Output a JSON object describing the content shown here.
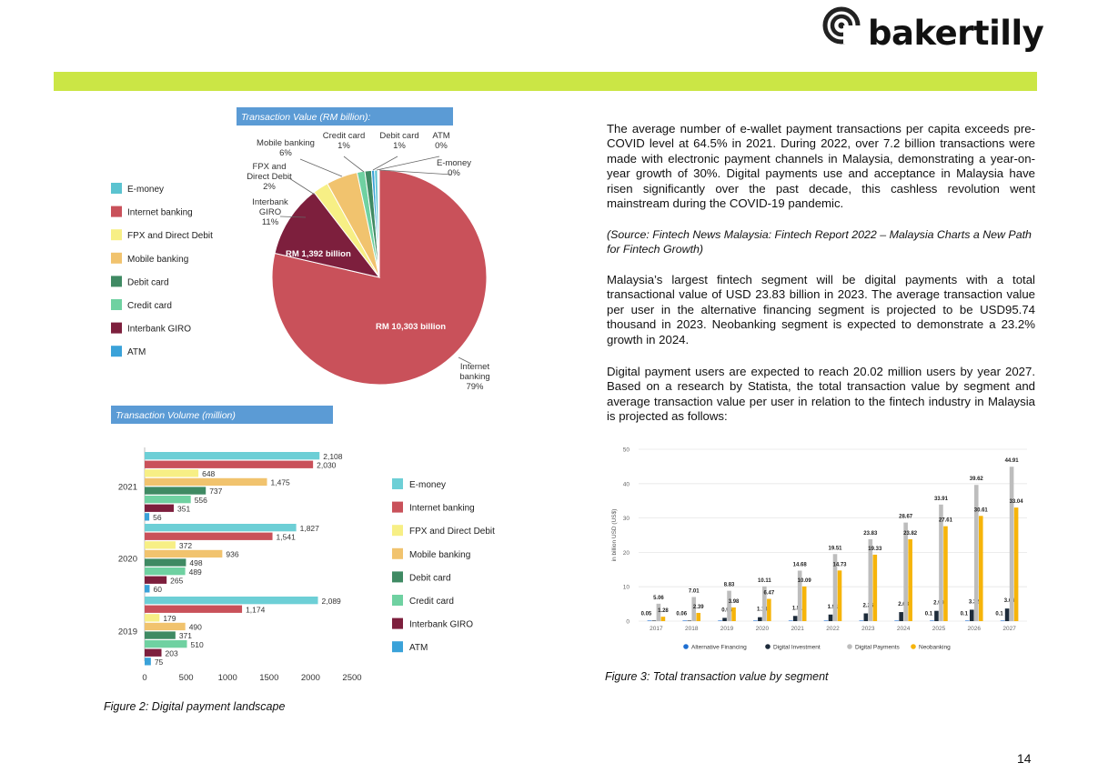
{
  "header": {
    "logo_text": "bakertilly",
    "accent_color": "#cbe645"
  },
  "text": {
    "p1": "The average number of e-wallet payment transactions per capita exceeds pre-COVID level at 64.5% in 2021. During 2022, over 7.2 billion transactions were made with electronic payment channels in Malaysia, demonstrating a year-on-year growth of 30%. Digital payments use and acceptance in Malaysia have risen significantly over the past decade, this cashless revolution went mainstream during the COVID-19 pandemic.",
    "source": "(Source: Fintech News Malaysia: Fintech Report 2022 – Malaysia Charts a New Path for Fintech Growth)",
    "p2": "Malaysia’s largest fintech segment will be digital payments with a total transactional value of USD 23.83 billion in 2023. The average transaction value per user in the alternative financing segment is projected to be USD95.74 thousand in 2023. Neobanking segment is expected to demonstrate a 23.2% growth in 2024.",
    "p3": "Digital payment users are expected to reach 20.02 million users by year 2027. Based on a research by Statista, the total transaction value by segment and average transaction value per user in relation to the fintech industry in Malaysia is projected as follows:"
  },
  "captions": {
    "fig2": "Figure 2: Digital payment landscape",
    "fig3": "Figure 3: Total transaction value by segment"
  },
  "page_number": "14",
  "chart_data": [
    {
      "type": "pie",
      "title": "Transaction Value (RM billion):",
      "legend_placement": "left",
      "legend": [
        {
          "name": "E-money",
          "color": "#5bc3d0"
        },
        {
          "name": "Internet banking",
          "color": "#c9515a"
        },
        {
          "name": "FPX and Direct Debit",
          "color": "#f7ef85"
        },
        {
          "name": "Mobile banking",
          "color": "#f1c36e"
        },
        {
          "name": "Debit card",
          "color": "#3f8a63"
        },
        {
          "name": "Credit card",
          "color": "#6fd1a1"
        },
        {
          "name": "Interbank GIRO",
          "color": "#7d1f3d"
        },
        {
          "name": "ATM",
          "color": "#3aa2d9"
        }
      ],
      "slices": [
        {
          "name": "Internet banking",
          "percent": 79,
          "color": "#c9515a",
          "pct_label": "Internet\nbanking\n79%",
          "value_label": "RM 10,303 billion"
        },
        {
          "name": "Interbank GIRO",
          "percent": 11,
          "color": "#7d1f3d",
          "pct_label": "Interbank\nGIRO\n11%",
          "value_label": "RM 1,392 billion"
        },
        {
          "name": "FPX and Direct Debit",
          "percent": 2,
          "color": "#f7ef85",
          "pct_label": "FPX and\nDirect Debit\n2%"
        },
        {
          "name": "Mobile banking",
          "percent": 6,
          "color": "#f1c36e",
          "pct_label": "Mobile banking\n6%"
        },
        {
          "name": "Credit card",
          "percent": 1,
          "color": "#6fd1a1",
          "pct_label": "Credit card\n1%"
        },
        {
          "name": "Debit card",
          "percent": 1,
          "color": "#3f8a63",
          "pct_label": "Debit card\n1%"
        },
        {
          "name": "ATM",
          "percent": 0,
          "color": "#3aa2d9",
          "pct_label": "ATM\n0%"
        },
        {
          "name": "E-money",
          "percent": 0,
          "color": "#5bc3d0",
          "pct_label": "E-money\n0%"
        }
      ]
    },
    {
      "type": "bar",
      "orientation": "horizontal",
      "title": "Transaction Volume (million)",
      "categories": [
        "2021",
        "2020",
        "2019"
      ],
      "xlim": [
        0,
        2500
      ],
      "xticks": [
        0,
        500,
        1000,
        1500,
        2000,
        2500
      ],
      "legend_placement": "right",
      "series": [
        {
          "name": "E-money",
          "color": "#6dcfd6",
          "values": [
            2108,
            1827,
            2089
          ]
        },
        {
          "name": "Internet banking",
          "color": "#c9515a",
          "values": [
            2030,
            1541,
            1174
          ]
        },
        {
          "name": "FPX and Direct Debit",
          "color": "#f7ef85",
          "values": [
            648,
            372,
            179
          ]
        },
        {
          "name": "Mobile banking",
          "color": "#f1c36e",
          "values": [
            1475,
            936,
            490
          ]
        },
        {
          "name": "Debit card",
          "color": "#3f8a63",
          "values": [
            737,
            498,
            371
          ]
        },
        {
          "name": "Credit card",
          "color": "#6fd1a1",
          "values": [
            556,
            489,
            510
          ]
        },
        {
          "name": "Interbank GIRO",
          "color": "#7d1f3d",
          "values": [
            351,
            265,
            203
          ]
        },
        {
          "name": "ATM",
          "color": "#3aa2d9",
          "values": [
            56,
            60,
            75
          ]
        }
      ]
    },
    {
      "type": "bar",
      "orientation": "vertical",
      "ylabel": "in billion USD (US$)",
      "ylim": [
        0,
        50
      ],
      "yticks": [
        0,
        10,
        20,
        30,
        40,
        50
      ],
      "grid": true,
      "legend_placement": "bottom",
      "categories": [
        "2017",
        "2018",
        "2019",
        "2020",
        "2021",
        "2022",
        "2023",
        "2024",
        "2025",
        "2026",
        "2027"
      ],
      "series": [
        {
          "name": "Alternative Financing",
          "color": "#1f6fd1",
          "values": [
            0.05,
            0.06,
            0.1,
            0.1,
            0.1,
            0.1,
            0.1,
            0.1,
            0.1,
            0.1,
            0.1
          ],
          "labels": [
            "0.05",
            "0.06",
            "",
            "",
            "",
            "",
            "",
            "",
            "0.1",
            "0.1",
            "0.1"
          ]
        },
        {
          "name": "Digital Investment",
          "color": "#1d2b3a",
          "values": [
            0.05,
            0.06,
            0.95,
            1.14,
            1.51,
            1.91,
            2.25,
            2.63,
            2.99,
            3.32,
            3.66
          ],
          "labels": [
            "",
            "",
            "0.95",
            "1.14",
            "1.51",
            "1.91",
            "2.25",
            "2.63",
            "2.99",
            "3.32",
            "3.66"
          ]
        },
        {
          "name": "Digital Payments",
          "color": "#bdbdbd",
          "values": [
            5.06,
            7.01,
            8.83,
            10.11,
            14.68,
            19.51,
            23.83,
            28.67,
            33.91,
            39.62,
            44.91
          ],
          "labels": [
            "5.06",
            "7.01",
            "8.83",
            "10.11",
            "14.68",
            "19.51",
            "23.83",
            "28.67",
            "33.91",
            "39.62",
            "44.91"
          ]
        },
        {
          "name": "Neobanking",
          "color": "#f6b40a",
          "values": [
            1.28,
            2.39,
            3.98,
            6.47,
            10.09,
            14.73,
            19.33,
            23.82,
            27.61,
            30.61,
            33.04
          ],
          "labels": [
            "1.28",
            "2.39",
            "3.98",
            "6.47",
            "10.09",
            "14.73",
            "19.33",
            "23.82",
            "27.61",
            "30.61",
            "33.04"
          ]
        }
      ]
    }
  ]
}
